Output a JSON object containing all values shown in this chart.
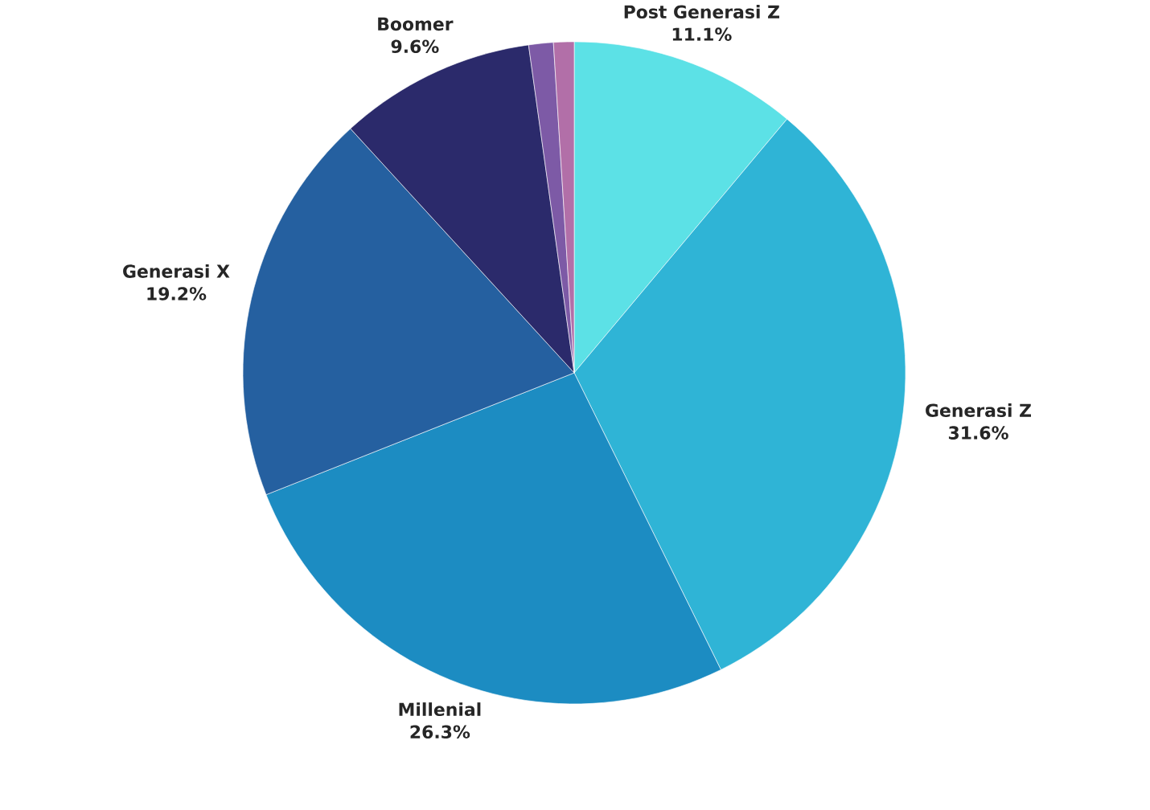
{
  "chart_data": {
    "type": "pie",
    "categories": [
      "Post Generasi Z",
      "Generasi Z",
      "Millenial",
      "Generasi X",
      "Boomer",
      null,
      null
    ],
    "values": [
      11.1,
      31.6,
      26.3,
      19.2,
      9.6,
      1.2,
      1.0
    ],
    "value_labels": [
      "11.1%",
      "31.6%",
      "26.3%",
      "19.2%",
      "9.6%",
      null,
      null
    ],
    "colors": [
      "#5ce1e6",
      "#2fb4d6",
      "#1c8cc2",
      "#2560a0",
      "#2b2a6b",
      "#7d5aa6",
      "#b26fa8"
    ]
  }
}
